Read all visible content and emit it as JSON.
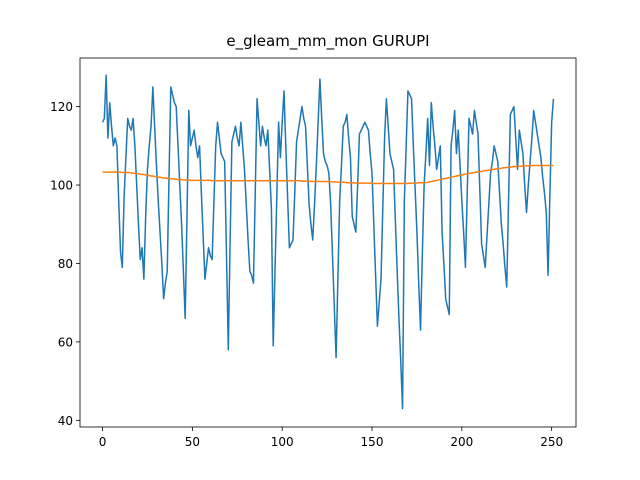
{
  "chart_data": {
    "type": "line",
    "title": "e_gleam_mm_mon GURUPI",
    "x": [
      0,
      1,
      2,
      3,
      4,
      5,
      6,
      7,
      8,
      9,
      10,
      11,
      12,
      13,
      14,
      15,
      16,
      17,
      18,
      19,
      20,
      21,
      22,
      23,
      24,
      25,
      26,
      27,
      28,
      29,
      30,
      31,
      32,
      33,
      34,
      35,
      36,
      37,
      38,
      39,
      40,
      41,
      42,
      43,
      44,
      45,
      46,
      47,
      48,
      49,
      50,
      51,
      52,
      53,
      54,
      55,
      56,
      57,
      58,
      59,
      60,
      61,
      62,
      63,
      64,
      65,
      66,
      67,
      68,
      69,
      70,
      71,
      72,
      73,
      74,
      75,
      76,
      77,
      78,
      79,
      80,
      81,
      82,
      83,
      84,
      85,
      86,
      87,
      88,
      89,
      90,
      91,
      92,
      93,
      94,
      95,
      96,
      97,
      98,
      99,
      100,
      101,
      102,
      103,
      104,
      105,
      106,
      107,
      108,
      109,
      110,
      111,
      112,
      113,
      114,
      115,
      116,
      117,
      118,
      119,
      120,
      121,
      122,
      123,
      124,
      125,
      126,
      127,
      128,
      129,
      130,
      131,
      132,
      133,
      134,
      135,
      136,
      137,
      138,
      139,
      140,
      141,
      142,
      143,
      144,
      145,
      146,
      147,
      148,
      149,
      150,
      151,
      152,
      153,
      154,
      155,
      156,
      157,
      158,
      159,
      160,
      161,
      162,
      163,
      164,
      165,
      166,
      167,
      168,
      169,
      170,
      171,
      172,
      173,
      174,
      175,
      176,
      177,
      178,
      179,
      180,
      181,
      182,
      183,
      184,
      185,
      186,
      187,
      188,
      189,
      190,
      191,
      192,
      193,
      194,
      195,
      196,
      197,
      198,
      199,
      200,
      201,
      202,
      203,
      204,
      205,
      206,
      207,
      208,
      209,
      210,
      211,
      212,
      213,
      214,
      215,
      216,
      217,
      218,
      219,
      220,
      221,
      222,
      223,
      224,
      225,
      226,
      227,
      228,
      229,
      230,
      231,
      232,
      233,
      234,
      235,
      236,
      237,
      238,
      239,
      240,
      241,
      242,
      243,
      244,
      245,
      246,
      247,
      248,
      249,
      250,
      251
    ],
    "series": [
      {
        "color": "#1f77b4",
        "values": [
          116,
          117,
          128,
          112,
          121,
          115,
          110,
          112,
          110,
          96,
          83,
          79,
          97,
          107,
          117,
          115,
          114,
          117,
          110,
          100,
          90,
          81,
          84,
          76,
          92,
          104,
          110,
          115,
          125,
          115,
          105,
          96,
          88,
          80,
          71,
          75,
          78,
          102,
          125,
          123,
          121,
          120,
          110,
          100,
          90,
          78,
          66,
          92,
          119,
          110,
          112,
          114,
          110,
          107,
          110,
          98,
          87,
          76,
          80,
          84,
          82,
          81,
          96,
          110,
          116,
          112,
          108,
          107,
          106,
          82,
          58,
          85,
          111,
          113,
          115,
          112,
          110,
          116,
          110,
          104,
          95,
          86,
          78,
          77,
          75,
          98,
          122,
          116,
          110,
          115,
          112,
          110,
          114,
          104,
          94,
          59,
          78,
          97,
          116,
          107,
          116,
          124,
          110,
          97,
          84,
          85,
          86,
          98,
          111,
          114,
          117,
          120,
          117,
          115,
          105,
          95,
          90,
          86,
          95,
          105,
          116,
          127,
          117,
          108,
          106,
          105,
          103,
          95,
          82,
          69,
          56,
          76,
          96,
          105,
          115,
          116,
          118,
          112,
          107,
          92,
          90,
          88,
          100,
          113,
          114,
          115,
          116,
          115,
          114,
          108,
          103,
          90,
          77,
          64,
          70,
          76,
          94,
          112,
          122,
          115,
          108,
          106,
          104,
          91,
          78,
          66,
          55,
          43,
          96,
          110,
          124,
          123,
          122,
          110,
          99,
          88,
          75,
          63,
          82,
          100,
          108,
          117,
          105,
          121,
          115,
          110,
          104,
          107,
          110,
          88,
          80,
          71,
          69,
          67,
          110,
          114,
          119,
          108,
          114,
          105,
          96,
          88,
          79,
          98,
          117,
          115,
          113,
          119,
          116,
          113,
          99,
          85,
          82,
          79,
          87,
          95,
          103,
          106,
          110,
          108,
          106,
          98,
          90,
          85,
          79,
          74,
          96,
          118,
          119,
          120,
          112,
          104,
          114,
          111,
          108,
          100,
          93,
          100,
          106,
          112,
          119,
          116,
          113,
          110,
          107,
          102,
          98,
          93,
          77,
          97,
          116,
          122
        ]
      },
      {
        "color": "#ff7f0e",
        "values": [
          103.3,
          103.3,
          103.3,
          103.3,
          103.3,
          103.3,
          103.3,
          103.3,
          103.3,
          103.3,
          103.3,
          103.2,
          103.2,
          103.2,
          103.2,
          103.2,
          103.1,
          103.0,
          103.0,
          102.9,
          102.9,
          102.8,
          102.7,
          102.7,
          102.6,
          102.5,
          102.4,
          102.3,
          102.3,
          102.2,
          102.1,
          102.0,
          102.0,
          101.9,
          101.8,
          101.8,
          101.7,
          101.7,
          101.6,
          101.6,
          101.5,
          101.5,
          101.4,
          101.4,
          101.4,
          101.3,
          101.3,
          101.3,
          101.3,
          101.2,
          101.2,
          101.2,
          101.2,
          101.2,
          101.2,
          101.2,
          101.2,
          101.2,
          101.2,
          101.2,
          101.2,
          101.1,
          101.1,
          101.1,
          101.1,
          101.1,
          101.1,
          101.1,
          101.1,
          101.1,
          101.1,
          101.1,
          101.1,
          101.1,
          101.1,
          101.1,
          101.1,
          101.1,
          101.1,
          101.1,
          101.1,
          101.1,
          101.1,
          101.1,
          101.1,
          101.1,
          101.1,
          101.1,
          101.1,
          101.1,
          101.1,
          101.1,
          101.1,
          101.1,
          101.1,
          101.1,
          101.1,
          101.1,
          101.1,
          101.1,
          101.1,
          101.1,
          101.1,
          101.1,
          101.1,
          101.1,
          101.1,
          101.1,
          101.1,
          101.1,
          101.1,
          101.0,
          101.0,
          101.0,
          101.0,
          101.0,
          100.9,
          100.9,
          100.9,
          100.9,
          100.9,
          100.9,
          100.9,
          100.9,
          100.9,
          100.9,
          100.8,
          100.8,
          100.8,
          100.8,
          100.8,
          100.7,
          100.7,
          100.7,
          100.7,
          100.7,
          100.6,
          100.6,
          100.6,
          100.6,
          100.6,
          100.5,
          100.5,
          100.5,
          100.5,
          100.5,
          100.5,
          100.5,
          100.5,
          100.5,
          100.5,
          100.4,
          100.4,
          100.4,
          100.4,
          100.4,
          100.4,
          100.4,
          100.4,
          100.4,
          100.4,
          100.4,
          100.4,
          100.4,
          100.4,
          100.4,
          100.4,
          100.4,
          100.4,
          100.4,
          100.4,
          100.5,
          100.5,
          100.5,
          100.5,
          100.5,
          100.6,
          100.6,
          100.6,
          100.6,
          100.6,
          100.7,
          100.8,
          100.9,
          101.0,
          101.1,
          101.2,
          101.3,
          101.4,
          101.5,
          101.6,
          101.7,
          101.8,
          101.9,
          102.0,
          102.1,
          102.2,
          102.3,
          102.4,
          102.5,
          102.6,
          102.7,
          102.8,
          102.9,
          103.0,
          103.0,
          103.1,
          103.2,
          103.3,
          103.4,
          103.4,
          103.5,
          103.6,
          103.7,
          103.7,
          103.8,
          103.9,
          104.0,
          104.0,
          104.1,
          104.2,
          104.2,
          104.3,
          104.4,
          104.4,
          104.5,
          104.5,
          104.6,
          104.6,
          104.7,
          104.7,
          104.8,
          104.8,
          104.8,
          104.9,
          104.9,
          104.9,
          104.9,
          105.0,
          105.0,
          105.0,
          105.0,
          105.0,
          105.0,
          105.0,
          105.0,
          105.0,
          105.0,
          105.0,
          105.0,
          105.0,
          105.0
        ]
      }
    ],
    "xlim": [
      -12.55,
      263.55
    ],
    "ylim": [
      38.3,
      132.4
    ],
    "xticks": [
      0,
      50,
      100,
      150,
      200,
      250
    ],
    "yticks": [
      40,
      60,
      80,
      100,
      120
    ],
    "grid": false
  }
}
